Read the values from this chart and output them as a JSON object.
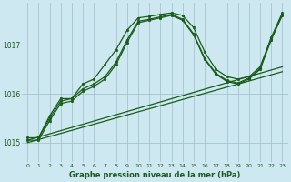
{
  "title": "Graphe pression niveau de la mer (hPa)",
  "background_color": "#cde8f0",
  "grid_color": "#9bbfc8",
  "line_color": "#1a5c1a",
  "xlim": [
    -0.5,
    23.5
  ],
  "ylim": [
    1014.6,
    1017.85
  ],
  "yticks": [
    1015,
    1016,
    1017
  ],
  "xticks": [
    0,
    1,
    2,
    3,
    4,
    5,
    6,
    7,
    8,
    9,
    10,
    11,
    12,
    13,
    14,
    15,
    16,
    17,
    18,
    19,
    20,
    21,
    22,
    23
  ],
  "series": [
    {
      "x": [
        0,
        1,
        2,
        3,
        4,
        5,
        6,
        7,
        8,
        9,
        10,
        11,
        12,
        13,
        14,
        15,
        16,
        17,
        18,
        19,
        20,
        21,
        22,
        23
      ],
      "y": [
        1015.05,
        1015.05,
        1015.45,
        1015.8,
        1015.85,
        1016.05,
        1016.15,
        1016.3,
        1016.6,
        1017.05,
        1017.45,
        1017.5,
        1017.55,
        1017.6,
        1017.5,
        1017.2,
        1016.7,
        1016.4,
        1016.25,
        1016.2,
        1016.3,
        1016.5,
        1017.1,
        1017.6
      ],
      "marker": "o",
      "markersize": 2.0,
      "linewidth": 0.9
    },
    {
      "x": [
        0,
        1,
        2,
        3,
        4,
        5,
        6,
        7,
        8,
        9,
        10,
        11,
        12,
        13,
        14,
        15,
        16,
        17,
        18,
        19,
        20,
        21,
        22,
        23
      ],
      "y": [
        1015.1,
        1015.1,
        1015.5,
        1015.85,
        1015.9,
        1016.1,
        1016.2,
        1016.35,
        1016.65,
        1017.1,
        1017.48,
        1017.52,
        1017.57,
        1017.62,
        1017.52,
        1017.22,
        1016.72,
        1016.42,
        1016.27,
        1016.22,
        1016.32,
        1016.52,
        1017.12,
        1017.62
      ],
      "marker": "o",
      "markersize": 2.0,
      "linewidth": 0.9
    },
    {
      "x": [
        1,
        2,
        3,
        4,
        5,
        6,
        7,
        8,
        9,
        10,
        11,
        12,
        13,
        14,
        15,
        16,
        17,
        18,
        19,
        20,
        21,
        22,
        23
      ],
      "y": [
        1015.1,
        1015.55,
        1015.9,
        1015.9,
        1016.2,
        1016.3,
        1016.6,
        1016.9,
        1017.3,
        1017.55,
        1017.58,
        1017.62,
        1017.65,
        1017.6,
        1017.35,
        1016.85,
        1016.5,
        1016.35,
        1016.3,
        1016.35,
        1016.55,
        1017.15,
        1017.65
      ],
      "marker": "o",
      "markersize": 2.0,
      "linewidth": 0.9
    },
    {
      "x": [
        0,
        23
      ],
      "y": [
        1015.05,
        1016.55
      ],
      "marker": null,
      "markersize": 0,
      "linewidth": 0.9
    },
    {
      "x": [
        0,
        23
      ],
      "y": [
        1015.0,
        1016.45
      ],
      "marker": null,
      "markersize": 0,
      "linewidth": 0.9
    }
  ]
}
